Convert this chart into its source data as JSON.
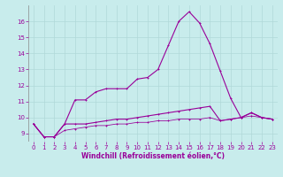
{
  "x": [
    0,
    1,
    2,
    3,
    4,
    5,
    6,
    7,
    8,
    9,
    10,
    11,
    12,
    13,
    14,
    15,
    16,
    17,
    18,
    19,
    20,
    21,
    22,
    23
  ],
  "line1": [
    9.6,
    8.8,
    8.8,
    9.6,
    11.1,
    11.1,
    11.6,
    11.8,
    11.8,
    11.8,
    12.4,
    12.5,
    13.0,
    14.5,
    16.0,
    16.6,
    15.9,
    14.6,
    12.9,
    11.2,
    10.0,
    10.3,
    10.0,
    9.9
  ],
  "line2": [
    9.6,
    8.8,
    8.8,
    9.6,
    9.6,
    9.6,
    9.7,
    9.8,
    9.9,
    9.9,
    10.0,
    10.1,
    10.2,
    10.3,
    10.4,
    10.5,
    10.6,
    10.7,
    9.8,
    9.9,
    10.0,
    10.3,
    10.0,
    9.9
  ],
  "line3": [
    9.6,
    8.8,
    8.8,
    9.2,
    9.3,
    9.4,
    9.5,
    9.5,
    9.6,
    9.6,
    9.7,
    9.7,
    9.8,
    9.8,
    9.9,
    9.9,
    9.9,
    10.0,
    9.8,
    9.9,
    10.0,
    10.1,
    10.0,
    9.9
  ],
  "bg_color": "#c8ecec",
  "line_color": "#990099",
  "grid_color": "#b0d8d8",
  "xlabel": "Windchill (Refroidissement éolien,°C)",
  "ylim": [
    8.5,
    17.0
  ],
  "xlim": [
    -0.5,
    23.5
  ],
  "yticks": [
    9,
    10,
    11,
    12,
    13,
    14,
    15,
    16
  ],
  "xticks": [
    0,
    1,
    2,
    3,
    4,
    5,
    6,
    7,
    8,
    9,
    10,
    11,
    12,
    13,
    14,
    15,
    16,
    17,
    18,
    19,
    20,
    21,
    22,
    23
  ],
  "tick_fontsize": 5.0,
  "xlabel_fontsize": 5.5,
  "linewidth": 0.8,
  "marker_size": 2.0
}
